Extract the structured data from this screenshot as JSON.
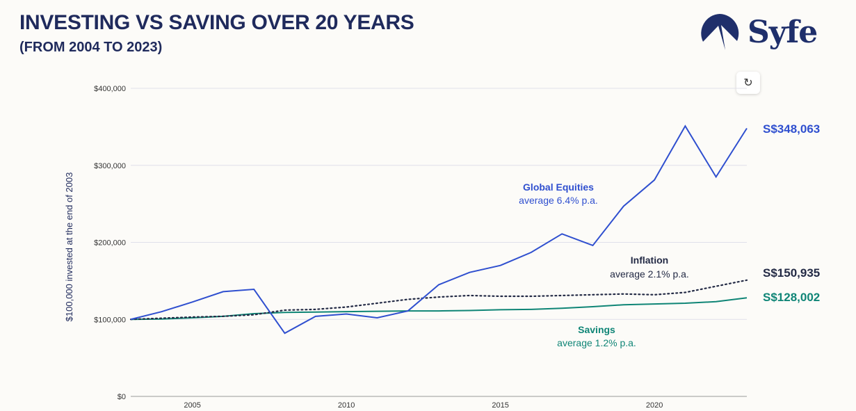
{
  "header": {
    "title": "INVESTING VS SAVING OVER 20 YEARS",
    "subtitle": "(FROM 2004 TO 2023)",
    "logo_text": "Syfe"
  },
  "controls": {
    "reset_icon": "refresh-icon",
    "reset_glyph": "↻"
  },
  "chart_data": {
    "type": "line",
    "ylabel": "$100,000 invested at the end of 2003",
    "xlabel": "",
    "x": [
      2003,
      2004,
      2005,
      2006,
      2007,
      2008,
      2009,
      2010,
      2011,
      2012,
      2013,
      2014,
      2015,
      2016,
      2017,
      2018,
      2019,
      2020,
      2021,
      2022,
      2023
    ],
    "xlim": [
      2003,
      2023
    ],
    "ylim": [
      0,
      400000
    ],
    "xticks": [
      {
        "value": 2005,
        "label": "2005"
      },
      {
        "value": 2010,
        "label": "2010"
      },
      {
        "value": 2015,
        "label": "2015"
      },
      {
        "value": 2020,
        "label": "2020"
      }
    ],
    "yticks": [
      {
        "value": 0,
        "label": "$0"
      },
      {
        "value": 100000,
        "label": "$100,000"
      },
      {
        "value": 200000,
        "label": "$200,000"
      },
      {
        "value": 300000,
        "label": "$300,000"
      },
      {
        "value": 400000,
        "label": "$400,000"
      }
    ],
    "grid": true,
    "series": [
      {
        "name": "Global Equities",
        "annotation": "average 6.4% p.a.",
        "end_label": "S$348,063",
        "color": "#2f4fcf",
        "style": "solid",
        "values": [
          100000,
          110000,
          122500,
          136000,
          139000,
          82000,
          104000,
          107000,
          102000,
          111000,
          145000,
          161000,
          170000,
          187000,
          211000,
          196000,
          247000,
          281000,
          351000,
          285000,
          348063
        ]
      },
      {
        "name": "Inflation",
        "annotation": "average 2.1% p.a.",
        "end_label": "S$150,935",
        "color": "#232a45",
        "style": "dotted",
        "values": [
          100000,
          101500,
          103000,
          104000,
          106000,
          112000,
          113000,
          116000,
          121000,
          126000,
          129000,
          131000,
          130000,
          130000,
          131000,
          132000,
          133000,
          132000,
          135000,
          143000,
          150935
        ]
      },
      {
        "name": "Savings",
        "annotation": "average 1.2% p.a.",
        "end_label": "S$128,002",
        "color": "#0f8576",
        "style": "solid",
        "values": [
          100000,
          100500,
          102000,
          104000,
          107500,
          109000,
          109500,
          110000,
          110500,
          111000,
          111000,
          111500,
          112500,
          113000,
          114500,
          116500,
          119000,
          120000,
          121000,
          123000,
          128002
        ]
      }
    ]
  }
}
